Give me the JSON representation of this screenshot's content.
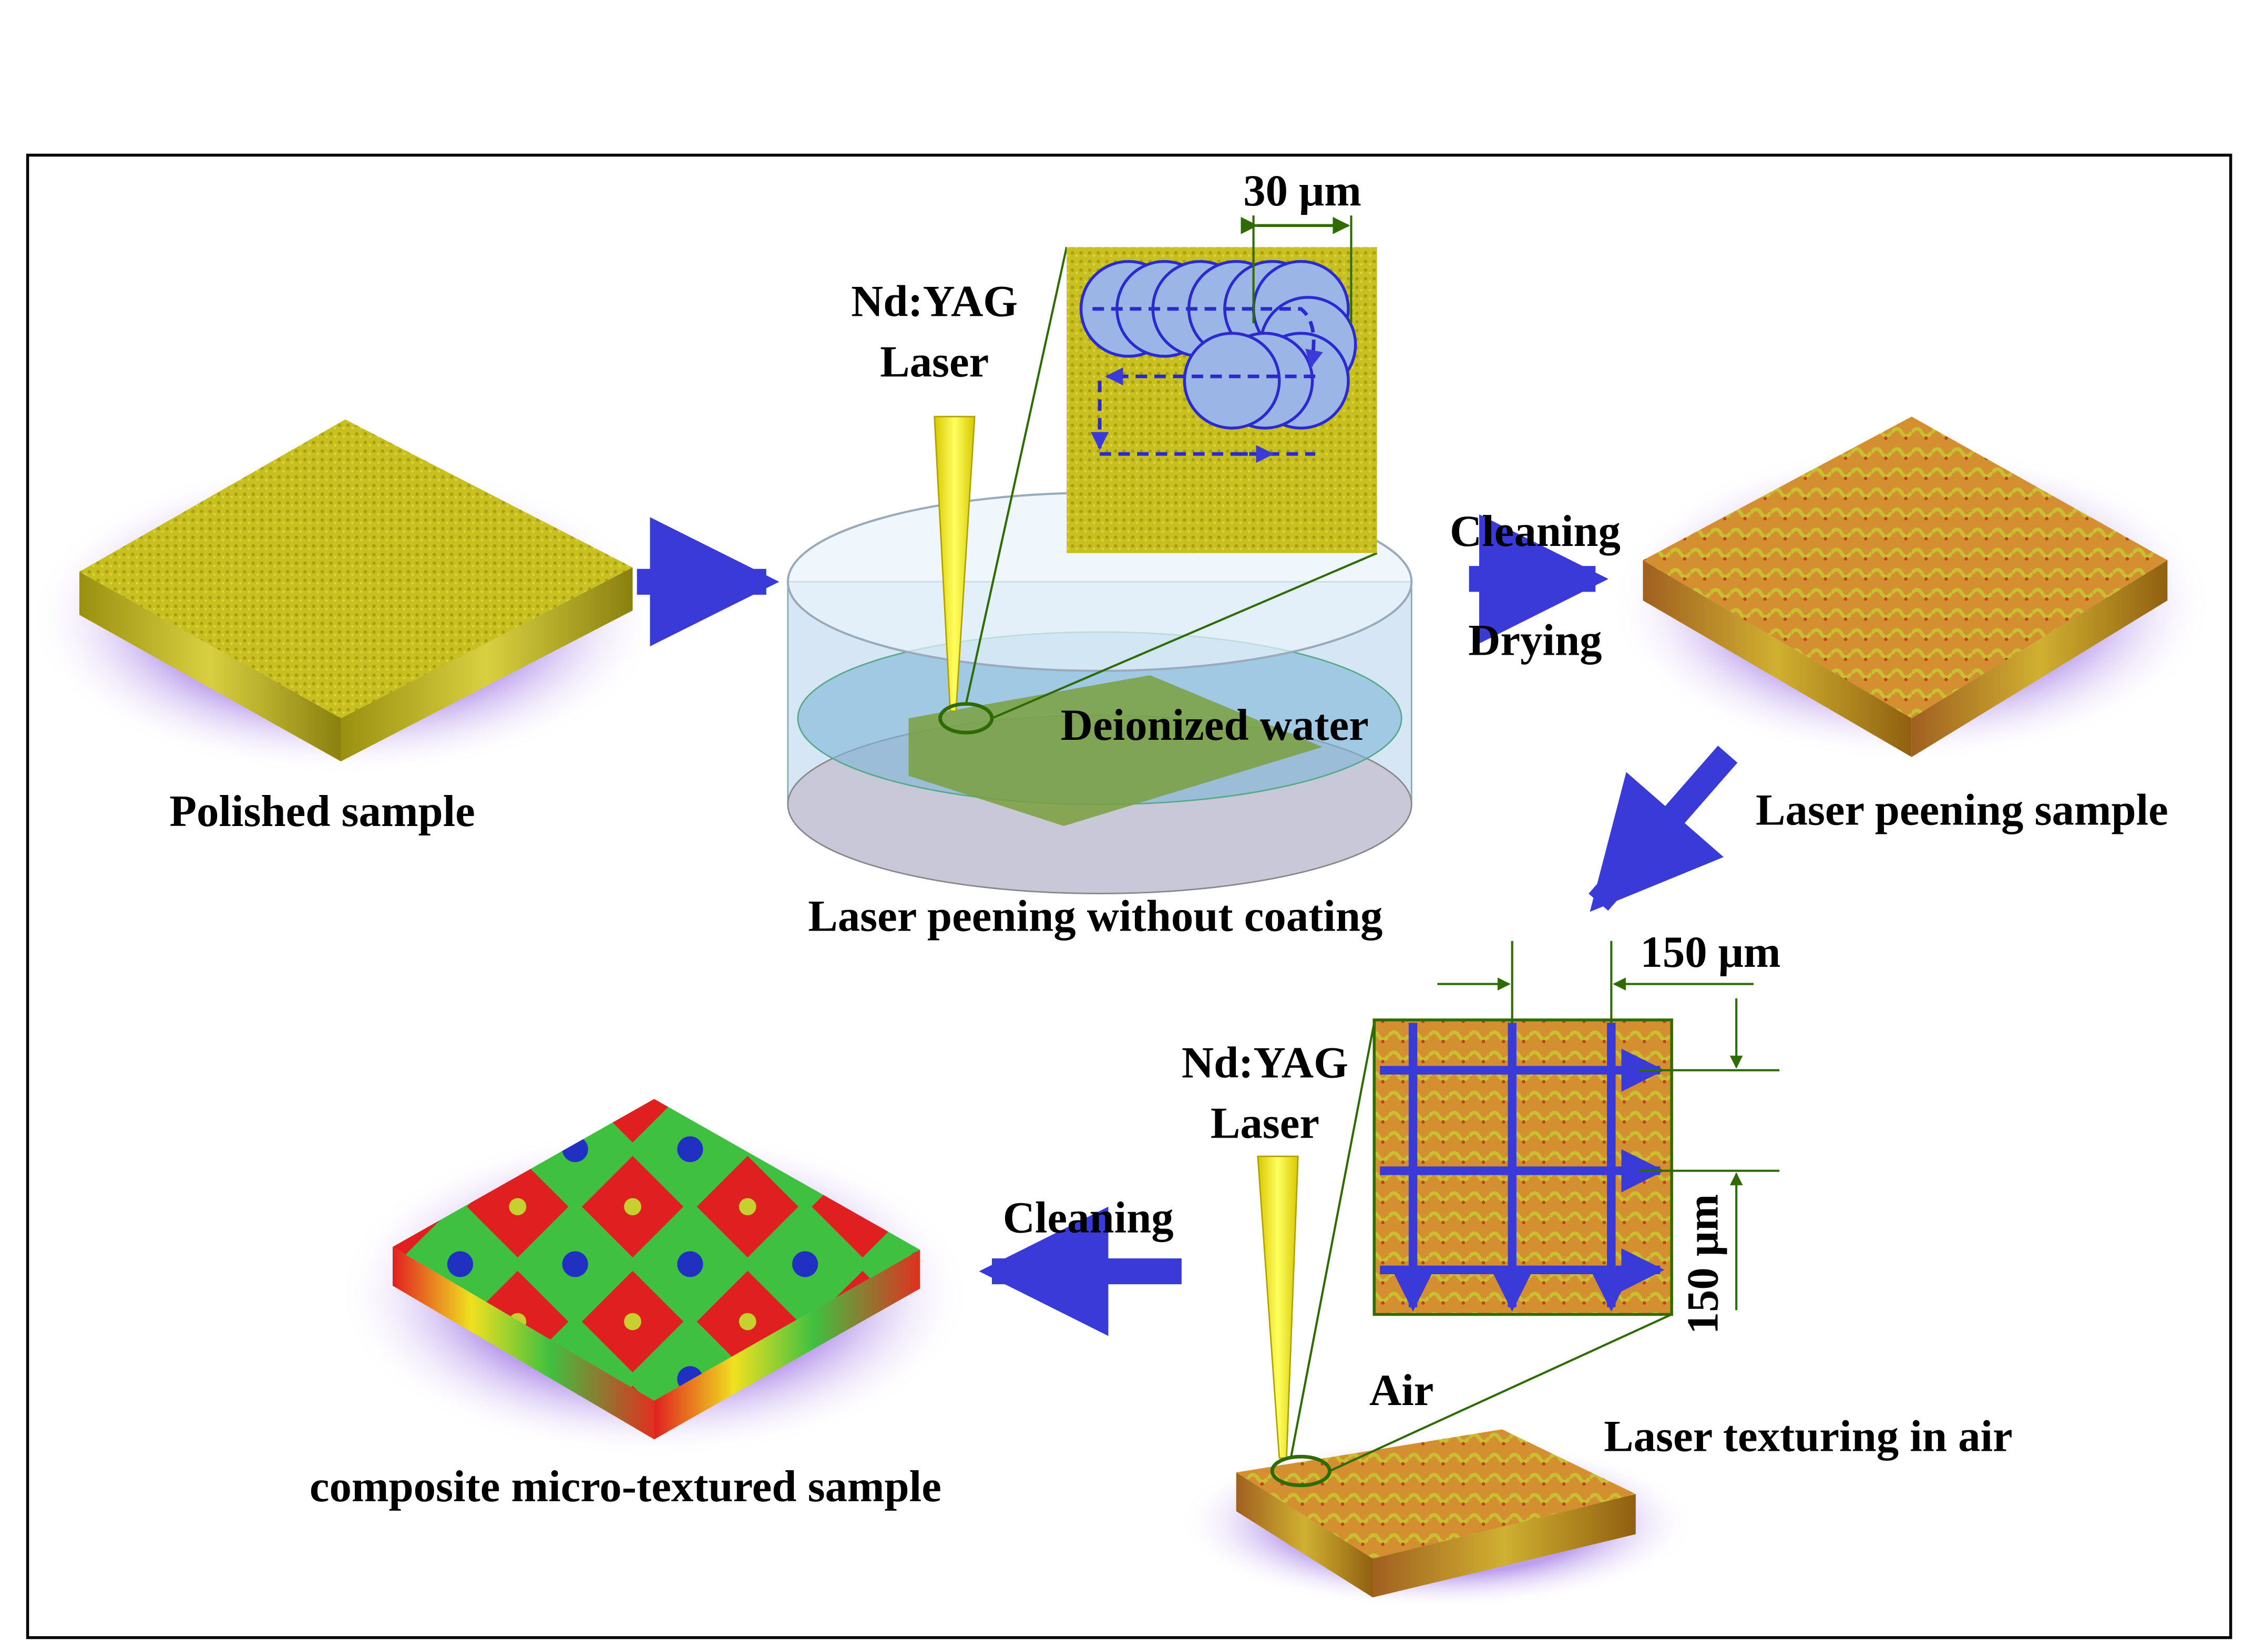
{
  "labels": {
    "polished": "Polished sample",
    "laser1_line1": "Nd:YAG",
    "laser1_line2": "Laser",
    "spot_dim": "30 μm",
    "deionized": "Deionized water",
    "lp_without_coating": "Laser peening without coating",
    "cleaning1": "Cleaning",
    "drying": "Drying",
    "lp_sample": "Laser peening sample",
    "grid_dim_h": "150 μm",
    "grid_dim_v": "150 μm",
    "laser2_line1": "Nd:YAG",
    "laser2_line2": "Laser",
    "air": "Air",
    "texturing": "Laser texturing in air",
    "cleaning2": "Cleaning",
    "composite": "composite micro-textured sample"
  },
  "colors": {
    "arrow": "#3a3ad8",
    "polished_surface": "#c8c020",
    "peened_surface": "#d49030",
    "laser_beam": "#f5f000",
    "spot_circle": "#9bb5e6",
    "dimension_line": "#2e6b00",
    "composite_red": "#e02020",
    "composite_green": "#40c040",
    "composite_blue": "#2030c0"
  }
}
